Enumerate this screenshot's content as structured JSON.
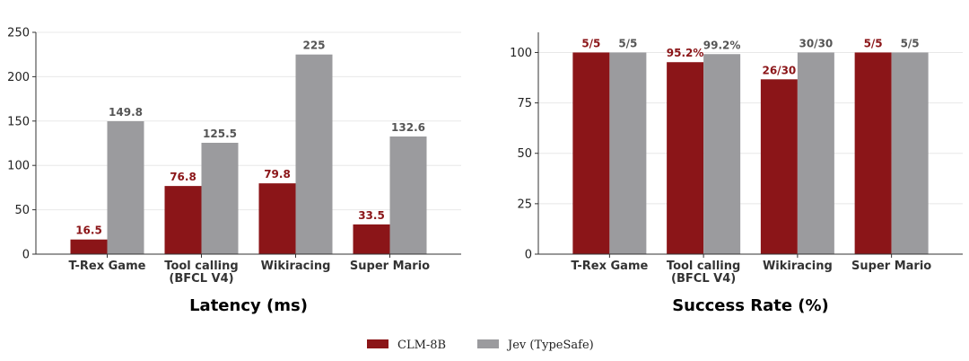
{
  "colors": {
    "clm": "#8b1518",
    "jev": "#9b9b9e",
    "clm_label": "#8b1518",
    "jev_label": "#555555",
    "grid": "#e8e8e8",
    "axis": "#333333"
  },
  "legend": [
    {
      "name": "CLM-8B",
      "color": "#8b1518"
    },
    {
      "name": "Jev (TypeSafe)",
      "color": "#9b9b9e"
    }
  ],
  "chart_data": [
    {
      "type": "bar",
      "title": "Latency (ms)",
      "categories": [
        [
          "T-Rex Game"
        ],
        [
          "Tool calling",
          "(BFCL V4)"
        ],
        [
          "Wikiracing"
        ],
        [
          "Super Mario"
        ]
      ],
      "ylim": [
        0,
        250
      ],
      "yticks": [
        0,
        50,
        100,
        150,
        200,
        250
      ],
      "series": [
        {
          "name": "CLM-8B",
          "values": [
            16.5,
            76.8,
            79.8,
            33.5
          ],
          "labels": [
            "16.5",
            "76.8",
            "79.8",
            "33.5"
          ]
        },
        {
          "name": "Jev (TypeSafe)",
          "values": [
            149.8,
            125.5,
            225,
            132.6
          ],
          "labels": [
            "149.8",
            "125.5",
            "225",
            "132.6"
          ]
        }
      ],
      "grid": true
    },
    {
      "type": "bar",
      "title": "Success Rate (%)",
      "categories": [
        [
          "T-Rex Game"
        ],
        [
          "Tool calling",
          "(BFCL V4)"
        ],
        [
          "Wikiracing"
        ],
        [
          "Super Mario"
        ]
      ],
      "ylim": [
        0,
        110
      ],
      "yticks": [
        0,
        25,
        50,
        75,
        100
      ],
      "series": [
        {
          "name": "CLM-8B",
          "values": [
            100,
            95.2,
            86.7,
            100
          ],
          "labels": [
            "5/5",
            "95.2%",
            "26/30",
            "5/5"
          ]
        },
        {
          "name": "Jev (TypeSafe)",
          "values": [
            100,
            99.2,
            100,
            100
          ],
          "labels": [
            "5/5",
            "99.2%",
            "30/30",
            "5/5"
          ]
        }
      ],
      "grid": true
    }
  ]
}
